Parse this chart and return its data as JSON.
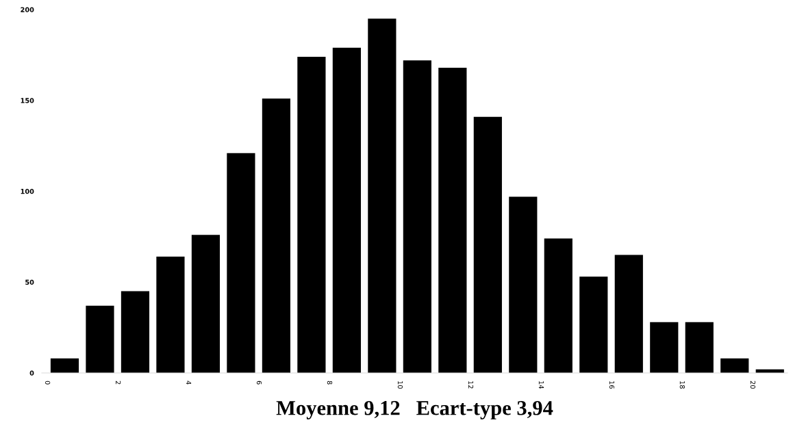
{
  "chart_data": {
    "type": "histogram",
    "xlabel": "Moyenne 9,12   Ecart-type 3,94",
    "bins": [
      0,
      1,
      2,
      3,
      4,
      5,
      6,
      7,
      8,
      9,
      10,
      11,
      12,
      13,
      14,
      15,
      16,
      17,
      18,
      19,
      20,
      21
    ],
    "values": [
      8,
      37,
      45,
      64,
      76,
      121,
      151,
      174,
      179,
      195,
      172,
      168,
      141,
      97,
      74,
      53,
      65,
      28,
      28,
      8,
      2
    ],
    "color": "#000000",
    "xlim": [
      -0.15,
      21
    ],
    "xticks": [
      0,
      2,
      4,
      6,
      8,
      10,
      12,
      14,
      16,
      18,
      20
    ],
    "ylim": [
      0,
      200
    ],
    "yticks": [
      0,
      50,
      100,
      150,
      200
    ],
    "grid": false,
    "legend": false
  }
}
